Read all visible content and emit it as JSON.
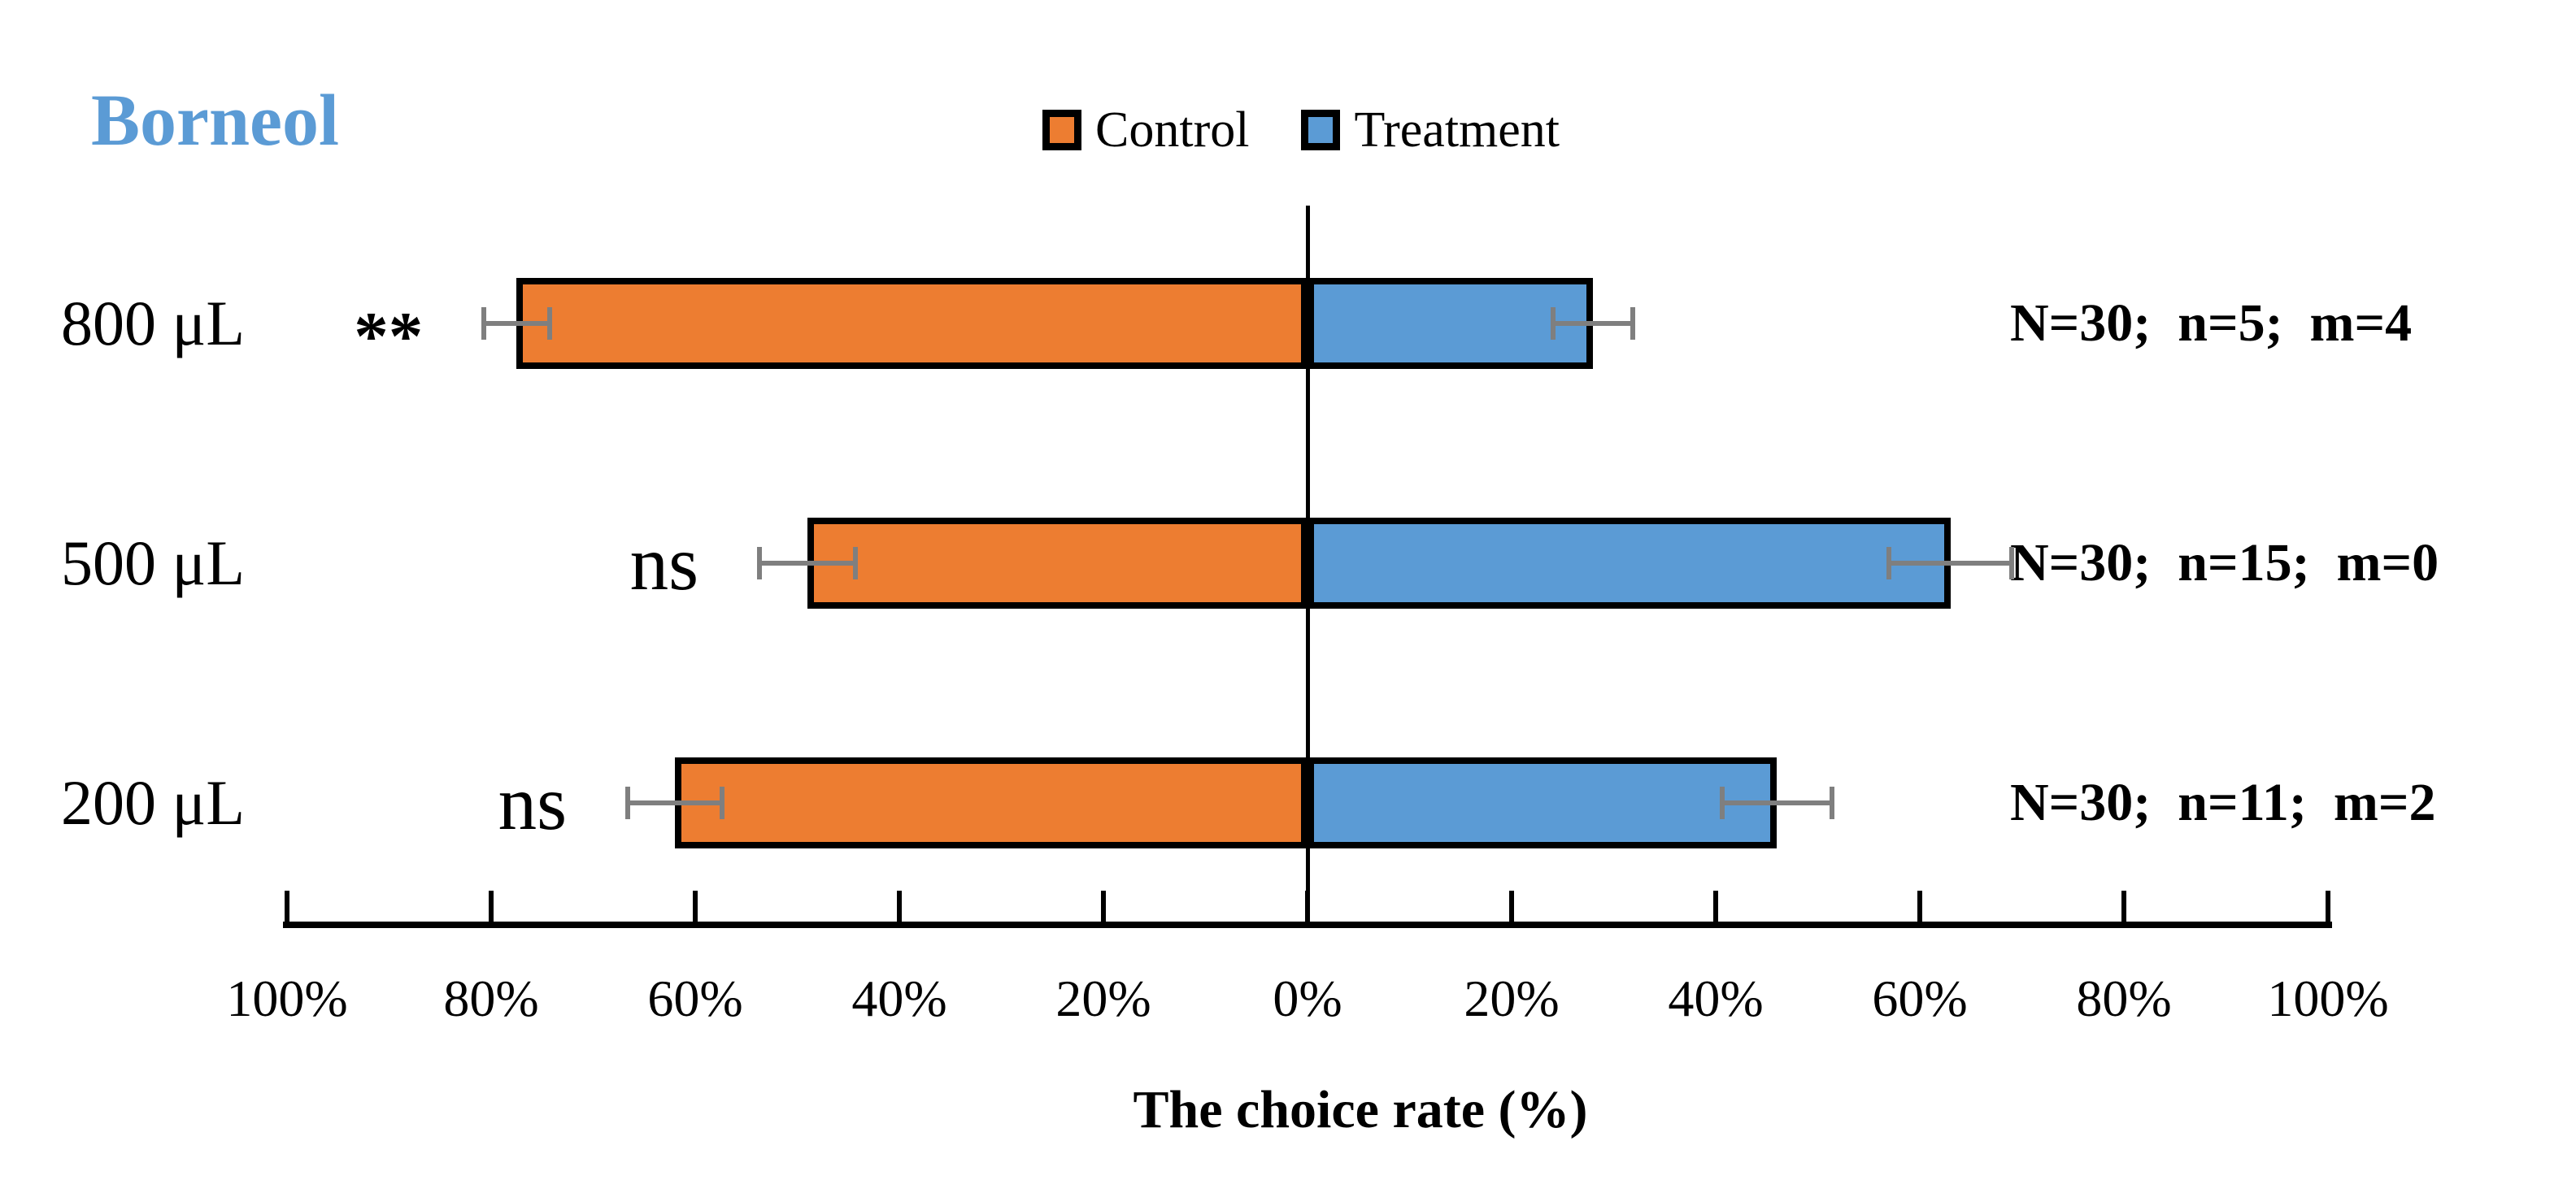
{
  "title": {
    "text": "Borneol",
    "color": "#5B9BD5"
  },
  "legend": {
    "items": [
      {
        "label": "Control",
        "color": "#ED7D31"
      },
      {
        "label": "Treatment",
        "color": "#5B9BD5"
      }
    ]
  },
  "chart_data": {
    "type": "bar",
    "orientation": "horizontal-diverging",
    "title": "Borneol",
    "xlabel": "The choice rate (%)",
    "categories": [
      "800 μL",
      "500 μL",
      "200 μL"
    ],
    "series": [
      {
        "name": "Control",
        "side": "left",
        "color": "#ED7D31",
        "values": [
          77.5,
          49.0,
          62.0
        ],
        "errors": [
          3.2,
          4.7,
          4.6
        ]
      },
      {
        "name": "Treatment",
        "side": "right",
        "color": "#5B9BD5",
        "values": [
          28.0,
          63.0,
          46.0
        ],
        "errors": [
          3.9,
          6.0,
          5.4
        ]
      }
    ],
    "significance_labels": [
      "**",
      "ns",
      "ns"
    ],
    "row_notes": [
      "N=30;  n=5;  m=4",
      "N=30;  n=15;  m=0",
      "N=30;  n=11;  m=2"
    ],
    "x_tick_values": [
      -100,
      -80,
      -60,
      -40,
      -20,
      0,
      20,
      40,
      60,
      80,
      100
    ],
    "x_tick_labels": [
      "100%",
      "80%",
      "60%",
      "40%",
      "20%",
      "0%",
      "20%",
      "40%",
      "60%",
      "80%",
      "100%"
    ],
    "xlim": [
      -100,
      100
    ],
    "value_unit": "%",
    "error_bar_color": "#7F7F7F",
    "bar_border_color": "#000000",
    "grid": false,
    "legend_position": "top-center"
  }
}
